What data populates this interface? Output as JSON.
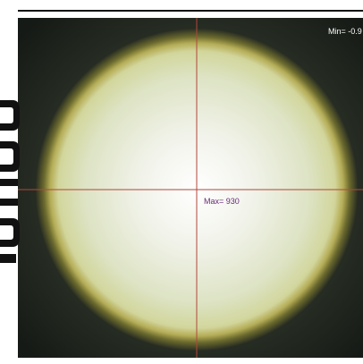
{
  "image": {
    "min_label": "Min= -0.9",
    "max_label": "Max= 930"
  }
}
